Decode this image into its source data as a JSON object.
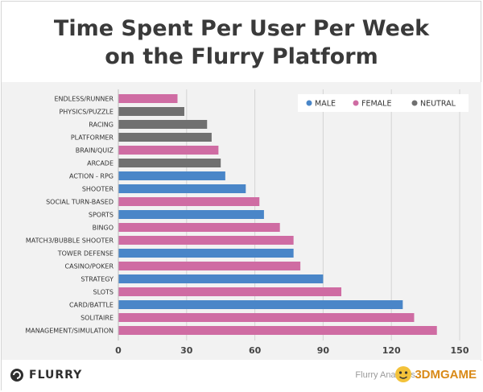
{
  "title_line1": "Time Spent Per User Per Week",
  "title_line2": "on the Flurry Platform",
  "colors": {
    "male": "#4a86c8",
    "female": "#cf6ca3",
    "neutral": "#707070"
  },
  "footer": {
    "logo_text": "FLURRY",
    "source": "Flurry Analytics",
    "watermark": "3DMGAME"
  },
  "chart_data": {
    "type": "bar",
    "orientation": "horizontal",
    "title": "Time Spent Per User Per Week on the Flurry Platform",
    "xlim": [
      0,
      150
    ],
    "xticks": [
      0,
      30,
      60,
      90,
      120,
      150
    ],
    "grid": "vertical",
    "legend_position": "top-right",
    "legend": [
      {
        "key": "male",
        "label": "MALE"
      },
      {
        "key": "female",
        "label": "FEMALE"
      },
      {
        "key": "neutral",
        "label": "NEUTRAL"
      }
    ],
    "categories": [
      "ENDLESS/RUNNER",
      "PHYSICS/PUZZLE",
      "RACING",
      "PLATFORMER",
      "BRAIN/QUIZ",
      "ARCADE",
      "ACTION - RPG",
      "SHOOTER",
      "SOCIAL TURN-BASED",
      "SPORTS",
      "BINGO",
      "MATCH3/BUBBLE SHOOTER",
      "TOWER DEFENSE",
      "CASINO/POKER",
      "STRATEGY",
      "SLOTS",
      "CARD/BATTLE",
      "SOLITAIRE",
      "MANAGEMENT/SIMULATION"
    ],
    "values": [
      26,
      29,
      39,
      41,
      44,
      45,
      47,
      56,
      62,
      64,
      71,
      77,
      77,
      80,
      90,
      98,
      125,
      130,
      140
    ],
    "groups": [
      "female",
      "neutral",
      "neutral",
      "neutral",
      "female",
      "neutral",
      "male",
      "male",
      "female",
      "male",
      "female",
      "female",
      "male",
      "female",
      "male",
      "female",
      "male",
      "female",
      "female"
    ]
  }
}
